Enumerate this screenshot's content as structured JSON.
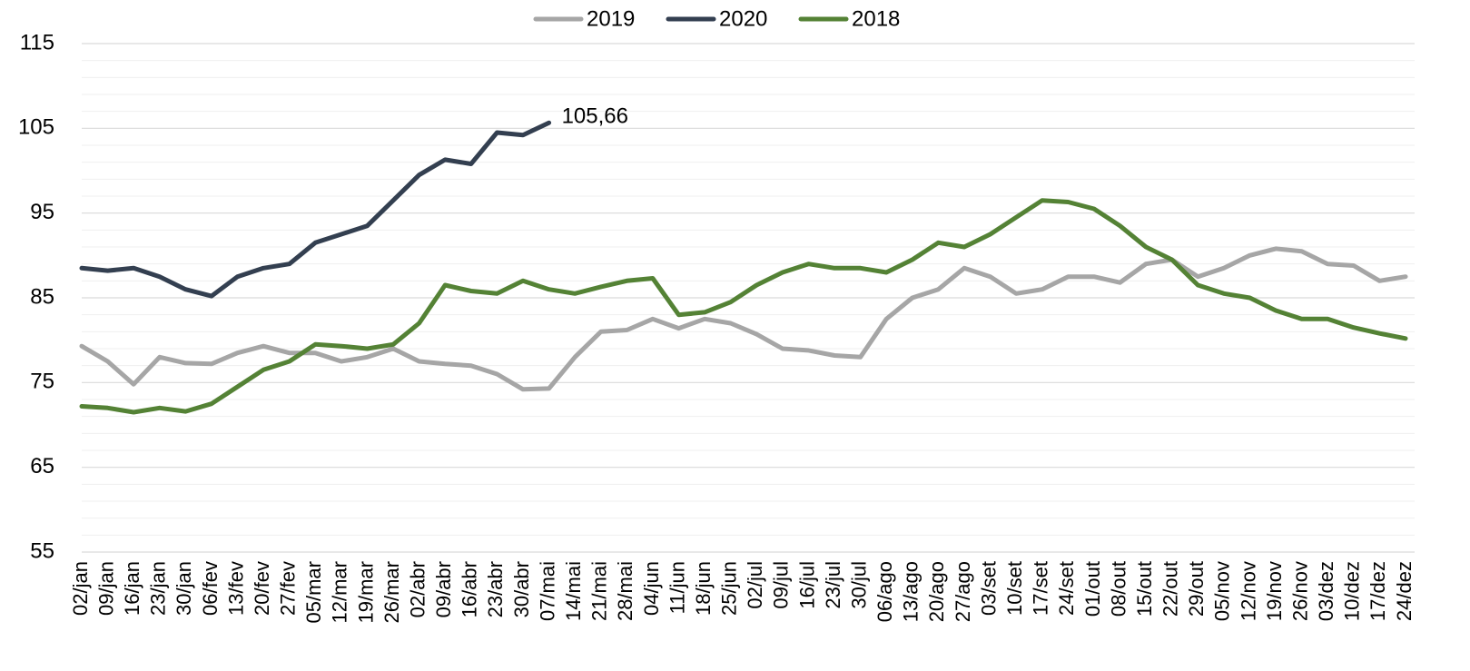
{
  "chart_data": {
    "type": "line",
    "categories": [
      "02/jan",
      "09/jan",
      "16/jan",
      "23/jan",
      "30/jan",
      "06/fev",
      "13/fev",
      "20/fev",
      "27/fev",
      "05/mar",
      "12/mar",
      "19/mar",
      "26/mar",
      "02/abr",
      "09/abr",
      "16/abr",
      "23/abr",
      "30/abr",
      "07/mai",
      "14/mai",
      "21/mai",
      "28/mai",
      "04/jun",
      "11/jun",
      "18/jun",
      "25/jun",
      "02/jul",
      "09/jul",
      "16/jul",
      "23/jul",
      "30/jul",
      "06/ago",
      "13/ago",
      "20/ago",
      "27/ago",
      "03/set",
      "10/set",
      "17/set",
      "24/set",
      "01/out",
      "08/out",
      "15/out",
      "22/out",
      "29/out",
      "05/nov",
      "12/nov",
      "19/nov",
      "26/nov",
      "03/dez",
      "10/dez",
      "17/dez",
      "24/dez"
    ],
    "series": [
      {
        "name": "2019",
        "color": "#a6a6a6",
        "values": [
          79.3,
          77.5,
          74.8,
          78,
          77.3,
          77.2,
          78.5,
          79.3,
          78.5,
          78.5,
          77.5,
          78,
          79,
          77.5,
          77.2,
          77,
          76,
          74.2,
          74.3,
          78,
          81,
          81.2,
          82.5,
          81.4,
          82.5,
          82,
          80.7,
          79,
          78.8,
          78.2,
          78,
          82.5,
          85,
          86,
          88.5,
          87.5,
          85.5,
          86,
          87.5,
          87.5,
          86.8,
          89,
          89.5,
          87.5,
          88.5,
          90,
          90.8,
          90.5,
          89,
          88.8,
          87,
          87.5
        ]
      },
      {
        "name": "2020",
        "color": "#333f50",
        "values": [
          88.5,
          88.2,
          88.5,
          87.5,
          86,
          85.2,
          87.5,
          88.5,
          89,
          91.5,
          92.5,
          93.5,
          96.5,
          99.5,
          101.3,
          100.8,
          104.5,
          104.2,
          105.66,
          null,
          null,
          null,
          null,
          null,
          null,
          null,
          null,
          null,
          null,
          null,
          null,
          null,
          null,
          null,
          null,
          null,
          null,
          null,
          null,
          null,
          null,
          null,
          null,
          null,
          null,
          null,
          null,
          null,
          null,
          null,
          null,
          null
        ],
        "value_labels": [
          null,
          null,
          null,
          null,
          null,
          null,
          null,
          null,
          null,
          null,
          null,
          null,
          null,
          null,
          null,
          null,
          null,
          null,
          "105,66",
          null,
          null,
          null,
          null,
          null,
          null,
          null,
          null,
          null,
          null,
          null,
          null,
          null,
          null,
          null,
          null,
          null,
          null,
          null,
          null,
          null,
          null,
          null,
          null,
          null,
          null,
          null,
          null,
          null,
          null,
          null,
          null,
          null
        ]
      },
      {
        "name": "2018",
        "color": "#548235",
        "values": [
          72.2,
          72,
          71.5,
          72,
          71.6,
          72.5,
          74.5,
          76.5,
          77.5,
          79.5,
          79.3,
          79,
          79.5,
          82,
          86.5,
          85.8,
          85.5,
          87,
          86,
          85.5,
          86.3,
          87,
          87.3,
          83,
          83.3,
          84.5,
          86.5,
          88,
          89,
          88.5,
          88.5,
          88,
          89.5,
          91.5,
          91,
          92.5,
          94.5,
          96.5,
          96.3,
          95.5,
          93.5,
          91,
          89.5,
          86.5,
          85.5,
          85,
          83.5,
          82.5,
          82.5,
          81.5,
          80.8,
          80.2
        ]
      }
    ],
    "ylim": [
      55,
      115
    ],
    "yticks": [
      55,
      65,
      75,
      85,
      95,
      105,
      115
    ],
    "minor_yticks": [
      57,
      59,
      61,
      63,
      67,
      69,
      71,
      73,
      77,
      79,
      81,
      83,
      87,
      89,
      91,
      93,
      97,
      99,
      101,
      103,
      107,
      109,
      111,
      113
    ],
    "grid": true,
    "legend": "top"
  }
}
